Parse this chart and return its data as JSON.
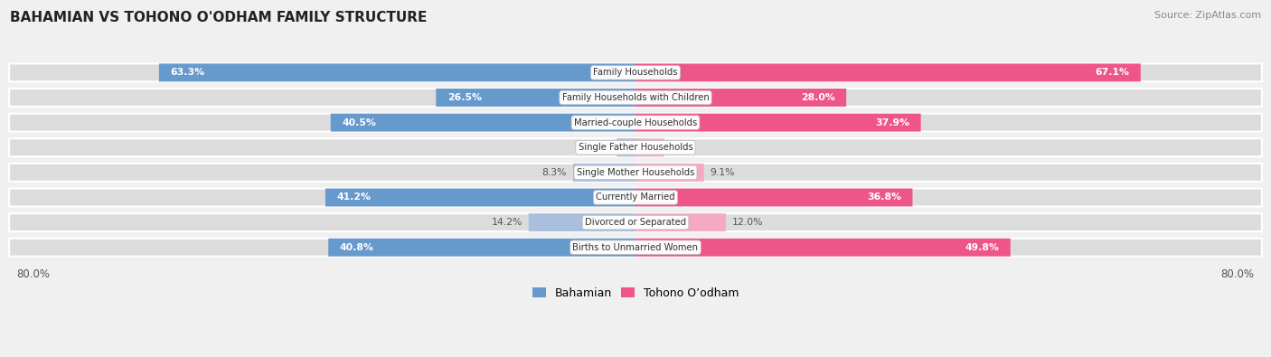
{
  "title": "BAHAMIAN VS TOHONO O'ODHAM FAMILY STRUCTURE",
  "source": "Source: ZipAtlas.com",
  "categories": [
    "Family Households",
    "Family Households with Children",
    "Married-couple Households",
    "Single Father Households",
    "Single Mother Households",
    "Currently Married",
    "Divorced or Separated",
    "Births to Unmarried Women"
  ],
  "bahamian_values": [
    63.3,
    26.5,
    40.5,
    2.5,
    8.3,
    41.2,
    14.2,
    40.8
  ],
  "tohono_values": [
    67.1,
    28.0,
    37.9,
    3.8,
    9.1,
    36.8,
    12.0,
    49.8
  ],
  "max_value": 80.0,
  "blue_dark": "#6699CC",
  "blue_light": "#AABEDD",
  "pink_dark": "#EE5588",
  "pink_light": "#F4AAC0",
  "row_bg": "#DCDCDC",
  "bg_color": "#F0F0F0",
  "title_color": "#222222",
  "source_color": "#888888",
  "threshold": 25.0
}
